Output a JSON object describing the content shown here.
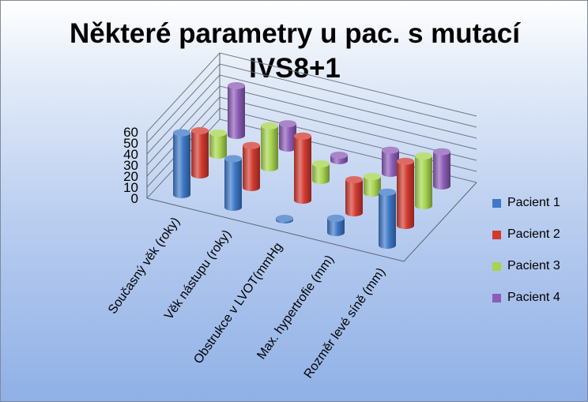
{
  "title_line1": "Některé parametry u pac. s mutací",
  "title_line2": "IVS8+1",
  "colors": {
    "Pacient 1": "#3d78c8",
    "Pacient 2": "#d23a30",
    "Pacient 3": "#a6d44e",
    "Pacient 4": "#8d5cb8"
  },
  "chart_data": {
    "type": "bar",
    "subtype": "3d-cylinder",
    "title": "Některé parametry u pac. s mutací IVS8+1",
    "categories": [
      "Současný věk (roky)",
      "Věk nástupu (roky)",
      "Obstrukce v LVOT(mmHg",
      "Max. hypertrofie (mm)",
      "Rozměr levé síně (mm)"
    ],
    "series": [
      {
        "name": "Pacient 1",
        "values": [
          56,
          44,
          0,
          13,
          48
        ]
      },
      {
        "name": "Pacient 2",
        "values": [
          40,
          38,
          58,
          30,
          58
        ]
      },
      {
        "name": "Pacient 3",
        "values": [
          20,
          38,
          15,
          15,
          45
        ]
      },
      {
        "name": "Pacient 4",
        "values": [
          45,
          22,
          5,
          21,
          31
        ]
      }
    ],
    "ylim": [
      0,
      60
    ],
    "yticks": [
      0,
      10,
      20,
      30,
      40,
      50,
      60
    ],
    "grid": true,
    "legend": "right"
  }
}
